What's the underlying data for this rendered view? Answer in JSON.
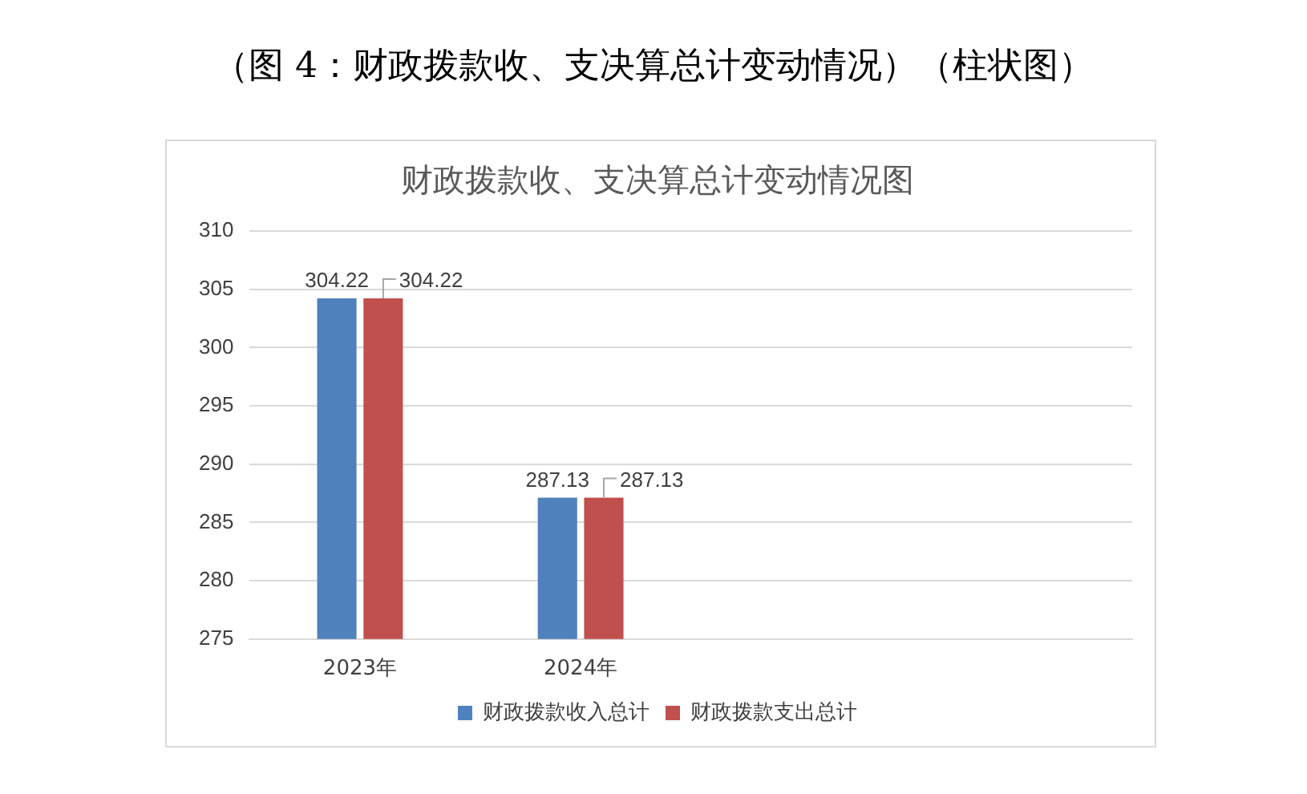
{
  "chart_data": {
    "type": "bar",
    "title": "财政拨款收、支决算总计变动情况图",
    "subtitle": "（图 4：财政拨款收、支决算总计变动情况）（柱状图）",
    "categories": [
      "2023年",
      "2024年",
      null,
      null
    ],
    "series": [
      {
        "name": "财政拨款收入总计",
        "color": "#4f81bd",
        "values": [
          304.22,
          287.13,
          null,
          null
        ]
      },
      {
        "name": "财政拨款支出总计",
        "color": "#c0504d",
        "values": [
          304.22,
          287.13,
          null,
          null
        ]
      }
    ],
    "ylim": [
      275,
      310
    ],
    "yticks": [
      275,
      280,
      285,
      290,
      295,
      300,
      305,
      310
    ],
    "grid": "y",
    "legend": "bottom",
    "data_labels": true
  }
}
